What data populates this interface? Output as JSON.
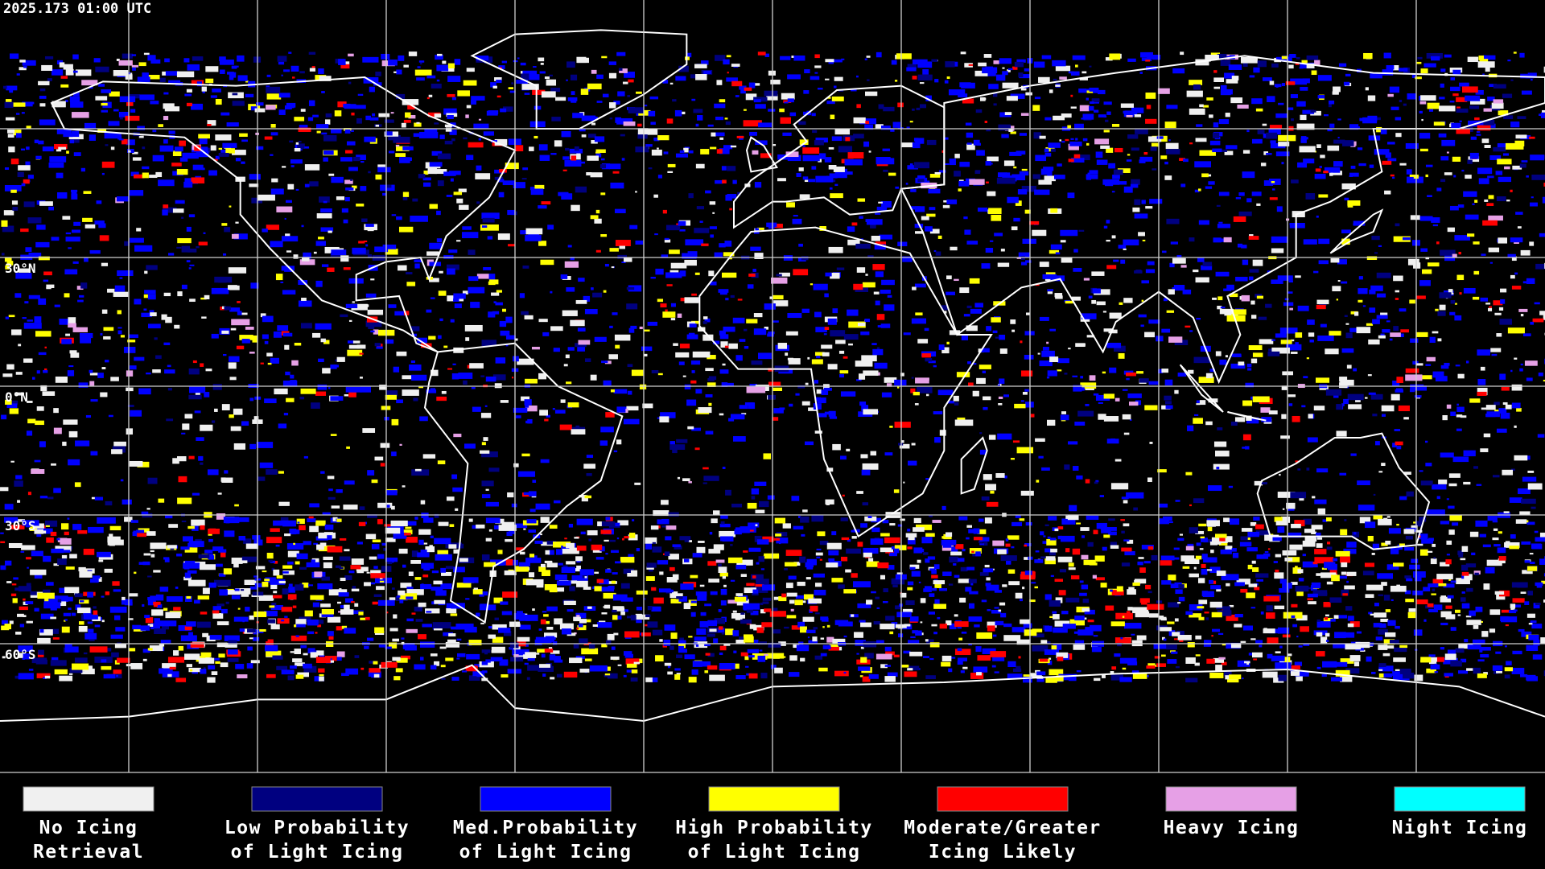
{
  "timestamp": "2025.173 01:00 UTC",
  "map": {
    "latitude_labels": [
      "30°N",
      "0°N",
      "30°S",
      "60°S"
    ]
  },
  "legend": [
    {
      "label_lines": [
        "No Icing",
        "Retrieval"
      ],
      "color": "#f0f0f0"
    },
    {
      "label_lines": [
        "Low Probability",
        "of Light Icing"
      ],
      "color": "#000080"
    },
    {
      "label_lines": [
        "Med.Probability",
        "of Light Icing"
      ],
      "color": "#0000ff"
    },
    {
      "label_lines": [
        "High Probability",
        "of Light Icing"
      ],
      "color": "#ffff00"
    },
    {
      "label_lines": [
        "Moderate/Greater",
        "Icing Likely"
      ],
      "color": "#ff0000"
    },
    {
      "label_lines": [
        "Heavy Icing"
      ],
      "color": "#e6a0e6"
    },
    {
      "label_lines": [
        "Night Icing"
      ],
      "color": "#00ffff"
    }
  ]
}
